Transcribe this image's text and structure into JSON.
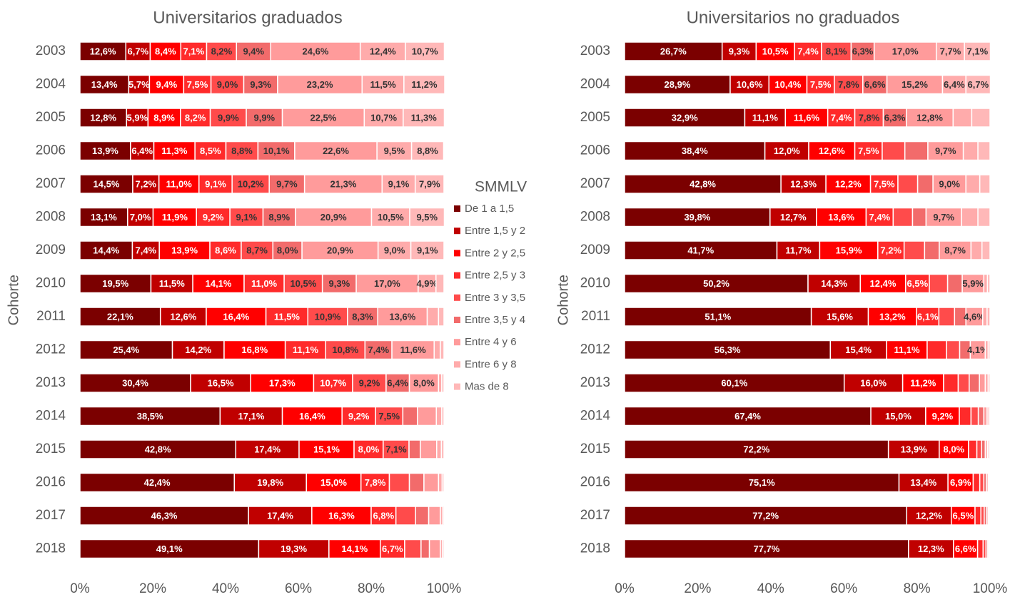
{
  "chart_data": [
    {
      "type": "bar",
      "orientation": "horizontal",
      "stacked": true,
      "title": "Universitarios graduados",
      "ylabel": "Cohorte",
      "legend_title": "SMMLV",
      "legend": "right",
      "categories": [
        "2003",
        "2004",
        "2005",
        "2006",
        "2007",
        "2008",
        "2009",
        "2010",
        "2011",
        "2012",
        "2013",
        "2014",
        "2015",
        "2016",
        "2017",
        "2018"
      ],
      "xlim": [
        0,
        100
      ],
      "xticks": [
        {
          "value": 0,
          "label": "0%"
        },
        {
          "value": 20,
          "label": "20%"
        },
        {
          "value": 40,
          "label": "40%"
        },
        {
          "value": 60,
          "label": "60%"
        },
        {
          "value": 80,
          "label": "80%"
        },
        {
          "value": 100,
          "label": "100%"
        }
      ],
      "series": [
        {
          "name": "De 1 a 1,5",
          "color": "#7b0000",
          "values": [
            12.6,
            13.4,
            12.8,
            13.9,
            14.5,
            13.1,
            14.4,
            19.5,
            22.1,
            25.4,
            30.4,
            38.5,
            42.8,
            42.4,
            46.3,
            49.1
          ],
          "value_labels": [
            "12,6%",
            "13,4%",
            "12,8%",
            "13,9%",
            "14,5%",
            "13,1%",
            "14,4%",
            "19,5%",
            "22,1%",
            "25,4%",
            "30,4%",
            "38,5%",
            "42,8%",
            "42,4%",
            "46,3%",
            "49,1%"
          ]
        },
        {
          "name": "Entre 1,5 y 2",
          "color": "#c00000",
          "values": [
            6.7,
            5.7,
            5.9,
            6.4,
            7.2,
            7.0,
            7.4,
            11.5,
            12.6,
            14.2,
            16.5,
            17.1,
            17.4,
            19.8,
            17.4,
            19.3
          ],
          "value_labels": [
            "6,7%",
            "5,7%",
            "5,9%",
            "6,4%",
            "7,2%",
            "7,0%",
            "7,4%",
            "11,5%",
            "12,6%",
            "14,2%",
            "16,5%",
            "17,1%",
            "17,4%",
            "19,8%",
            "17,4%",
            "19,3%"
          ]
        },
        {
          "name": "Entre 2 y 2,5",
          "color": "#ff0000",
          "values": [
            8.4,
            9.4,
            8.9,
            11.3,
            11.0,
            11.9,
            13.9,
            14.1,
            16.4,
            16.8,
            17.3,
            16.4,
            15.1,
            15.0,
            16.3,
            14.1
          ],
          "value_labels": [
            "8,4%",
            "9,4%",
            "8,9%",
            "11,3%",
            "11,0%",
            "11,9%",
            "13,9%",
            "14,1%",
            "16,4%",
            "16,8%",
            "17,3%",
            "16,4%",
            "15,1%",
            "15,0%",
            "16,3%",
            "14,1%"
          ]
        },
        {
          "name": "Entre 2,5 y 3",
          "color": "#ff2a2a",
          "values": [
            7.1,
            7.5,
            8.2,
            8.5,
            9.1,
            9.2,
            8.6,
            11.0,
            11.5,
            11.1,
            10.7,
            9.2,
            8.0,
            7.8,
            6.8,
            6.7
          ],
          "value_labels": [
            "7,1%",
            "7,5%",
            "8,2%",
            "8,5%",
            "9,1%",
            "9,2%",
            "8,6%",
            "11,0%",
            "11,5%",
            "11,1%",
            "10,7%",
            "9,2%",
            "8,0%",
            "7,8%",
            "6,8%",
            "6,7%"
          ]
        },
        {
          "name": "Entre 3 y 3,5",
          "color": "#ff4b4b",
          "values": [
            8.2,
            9.0,
            9.9,
            8.8,
            10.2,
            9.1,
            8.7,
            10.5,
            10.9,
            10.8,
            9.2,
            7.5,
            7.1,
            5.5,
            5.4,
            4.5
          ],
          "value_labels": [
            "8,2%",
            "9,0%",
            "9,9%",
            "8,8%",
            "10,2%",
            "9,1%",
            "8,7%",
            "10,5%",
            "10,9%",
            "10,8%",
            "9,2%",
            "7,5%",
            "7,1%",
            null,
            null,
            null
          ]
        },
        {
          "name": "Entre 3,5 y 4",
          "color": "#f26b6b",
          "values": [
            9.4,
            9.3,
            9.9,
            10.1,
            9.7,
            8.9,
            8.0,
            9.3,
            8.3,
            7.4,
            6.4,
            4.0,
            3.1,
            4.0,
            3.6,
            2.3
          ],
          "value_labels": [
            "9,4%",
            "9,3%",
            "9,9%",
            "10,1%",
            "9,7%",
            "8,9%",
            "8,0%",
            "9,3%",
            "8,3%",
            "7,4%",
            "6,4%",
            null,
            null,
            null,
            null,
            null
          ]
        },
        {
          "name": "Entre 4 y 6",
          "color": "#ff9b9b",
          "values": [
            24.6,
            23.2,
            22.5,
            22.6,
            21.3,
            20.9,
            20.9,
            17.0,
            13.6,
            11.6,
            8.0,
            5.2,
            4.5,
            4.0,
            3.2,
            3.0
          ],
          "value_labels": [
            "24,6%",
            "23,2%",
            "22,5%",
            "22,6%",
            "21,3%",
            "20,9%",
            "20,9%",
            "17,0%",
            "13,6%",
            "11,6%",
            "8,0%",
            null,
            null,
            null,
            null,
            null
          ]
        },
        {
          "name": "Entre 6 y 8",
          "color": "#ffabab",
          "values": [
            12.4,
            11.5,
            10.7,
            9.5,
            9.1,
            10.5,
            9.0,
            4.9,
            3.1,
            1.7,
            0.9,
            1.5,
            1.3,
            1.0,
            0.7,
            0.6
          ],
          "value_labels": [
            "12,4%",
            "11,5%",
            "10,7%",
            "9,5%",
            "9,1%",
            "10,5%",
            "9,0%",
            "4,9%",
            null,
            null,
            null,
            null,
            null,
            null,
            null,
            null
          ]
        },
        {
          "name": "Mas de 8",
          "color": "#ffb8b8",
          "values": [
            10.7,
            11.2,
            11.3,
            8.8,
            7.9,
            9.5,
            9.1,
            2.2,
            1.5,
            1.0,
            0.6,
            0.6,
            0.7,
            0.5,
            0.3,
            0.4
          ],
          "value_labels": [
            "10,7%",
            "11,2%",
            "11,3%",
            "8,8%",
            "7,9%",
            "9,5%",
            "9,1%",
            null,
            null,
            null,
            null,
            null,
            null,
            null,
            null,
            null
          ]
        }
      ]
    },
    {
      "type": "bar",
      "orientation": "horizontal",
      "stacked": true,
      "title": "Universitarios no graduados",
      "ylabel": "Cohorte",
      "categories": [
        "2003",
        "2004",
        "2005",
        "2006",
        "2007",
        "2008",
        "2009",
        "2010",
        "2011",
        "2012",
        "2013",
        "2014",
        "2015",
        "2016",
        "2017",
        "2018"
      ],
      "xlim": [
        0,
        100
      ],
      "xticks": [
        {
          "value": 0,
          "label": "0%"
        },
        {
          "value": 20,
          "label": "20%"
        },
        {
          "value": 40,
          "label": "40%"
        },
        {
          "value": 60,
          "label": "60%"
        },
        {
          "value": 80,
          "label": "80%"
        },
        {
          "value": 100,
          "label": "100%"
        }
      ],
      "series": [
        {
          "color": "#7b0000",
          "values": [
            26.7,
            28.9,
            32.9,
            38.4,
            42.8,
            39.8,
            41.7,
            50.2,
            51.1,
            56.3,
            60.1,
            67.4,
            72.2,
            75.1,
            77.2,
            77.7
          ],
          "value_labels": [
            "26,7%",
            "28,9%",
            "32,9%",
            "38,4%",
            "42,8%",
            "39,8%",
            "41,7%",
            "50,2%",
            "51,1%",
            "56,3%",
            "60,1%",
            "67,4%",
            "72,2%",
            "75,1%",
            "77,2%",
            "77,7%"
          ]
        },
        {
          "color": "#c00000",
          "values": [
            9.3,
            10.6,
            11.1,
            12.0,
            12.3,
            12.7,
            11.7,
            14.3,
            15.6,
            15.4,
            16.0,
            15.0,
            13.9,
            13.4,
            12.2,
            12.3
          ],
          "value_labels": [
            "9,3%",
            "10,6%",
            "11,1%",
            "12,0%",
            "12,3%",
            "12,7%",
            "11,7%",
            "14,3%",
            "15,6%",
            "15,4%",
            "16,0%",
            "15,0%",
            "13,9%",
            "13,4%",
            "12,2%",
            "12,3%"
          ]
        },
        {
          "color": "#ff0000",
          "values": [
            10.5,
            10.4,
            11.6,
            12.6,
            12.2,
            13.6,
            15.9,
            12.4,
            13.2,
            11.1,
            11.2,
            9.2,
            8.0,
            6.9,
            6.5,
            6.6
          ],
          "value_labels": [
            "10,5%",
            "10,4%",
            "11,6%",
            "12,6%",
            "12,2%",
            "13,6%",
            "15,9%",
            "12,4%",
            "13,2%",
            "11,1%",
            "11,2%",
            "9,2%",
            "8,0%",
            "6,9%",
            "6,5%",
            "6,6%"
          ]
        },
        {
          "color": "#ff2a2a",
          "values": [
            7.4,
            7.5,
            7.4,
            7.5,
            7.5,
            7.4,
            7.2,
            6.5,
            6.1,
            5.3,
            4.0,
            3.2,
            2.3,
            1.8,
            1.6,
            1.5
          ],
          "value_labels": [
            "7,4%",
            "7,5%",
            "7,4%",
            "7,5%",
            "7,5%",
            "7,4%",
            "7,2%",
            "6,5%",
            "6,1%",
            null,
            null,
            null,
            null,
            null,
            null,
            null
          ]
        },
        {
          "color": "#ff4b4b",
          "values": [
            8.1,
            7.8,
            7.8,
            6.2,
            5.4,
            5.3,
            5.6,
            5.0,
            4.3,
            3.6,
            3.0,
            2.0,
            1.3,
            1.1,
            0.9,
            0.8
          ],
          "value_labels": [
            "8,1%",
            "7,8%",
            "7,8%",
            null,
            null,
            null,
            null,
            null,
            null,
            null,
            null,
            null,
            null,
            null,
            null,
            null
          ]
        },
        {
          "color": "#f26b6b",
          "values": [
            6.3,
            6.6,
            6.3,
            6.3,
            4.2,
            3.7,
            4.0,
            4.0,
            3.1,
            2.9,
            2.8,
            1.5,
            1.0,
            0.7,
            0.7,
            0.5
          ],
          "value_labels": [
            "6,3%",
            "6,6%",
            "6,3%",
            null,
            null,
            null,
            null,
            null,
            null,
            null,
            null,
            null,
            null,
            null,
            null,
            null
          ]
        },
        {
          "color": "#ff9b9b",
          "values": [
            17.0,
            15.2,
            12.8,
            9.7,
            9.0,
            9.7,
            8.7,
            5.9,
            4.6,
            4.1,
            1.6,
            0.9,
            0.6,
            0.5,
            0.4,
            0.3
          ],
          "value_labels": [
            "17,0%",
            "15,2%",
            "12,8%",
            "9,7%",
            "9,0%",
            "9,7%",
            "8,7%",
            "5,9%",
            "4,6%",
            "4,1%",
            null,
            null,
            null,
            null,
            null,
            null
          ]
        },
        {
          "color": "#ffabab",
          "values": [
            7.7,
            6.4,
            5.1,
            4.0,
            3.8,
            4.5,
            3.0,
            1.0,
            1.2,
            0.8,
            0.8,
            0.5,
            0.4,
            0.3,
            0.3,
            0.2
          ],
          "value_labels": [
            "7,7%",
            "6,4%",
            null,
            null,
            null,
            null,
            null,
            null,
            null,
            null,
            null,
            null,
            null,
            null,
            null,
            null
          ]
        },
        {
          "color": "#ffb8b8",
          "values": [
            7.1,
            6.7,
            5.0,
            3.3,
            2.8,
            3.3,
            2.2,
            0.7,
            0.8,
            0.5,
            0.5,
            0.3,
            0.3,
            0.2,
            0.2,
            0.1
          ],
          "value_labels": [
            "7,1%",
            "6,7%",
            null,
            null,
            null,
            null,
            null,
            null,
            null,
            null,
            null,
            null,
            null,
            null,
            null,
            null
          ]
        }
      ]
    }
  ]
}
